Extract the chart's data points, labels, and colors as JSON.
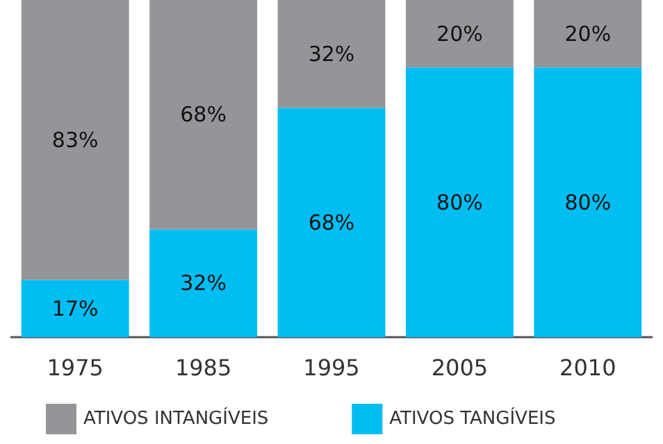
{
  "chart_data": {
    "type": "bar",
    "stacked": true,
    "legend": "bottom",
    "grid": false,
    "categories": [
      "1975",
      "1985",
      "1995",
      "2005",
      "2010"
    ],
    "series": [
      {
        "name": "ATIVOS TANGÍVEIS",
        "color": "#00bdf2",
        "values": [
          17,
          32,
          68,
          80,
          80
        ],
        "value_labels": [
          "17%",
          "32%",
          "68%",
          "80%",
          "80%"
        ]
      },
      {
        "name": "ATIVOS INTANGÍVEIS",
        "color": "#939598",
        "values": [
          83,
          68,
          32,
          20,
          20
        ],
        "value_labels": [
          "83%",
          "68%",
          "32%",
          "20%",
          "20%"
        ]
      }
    ]
  }
}
